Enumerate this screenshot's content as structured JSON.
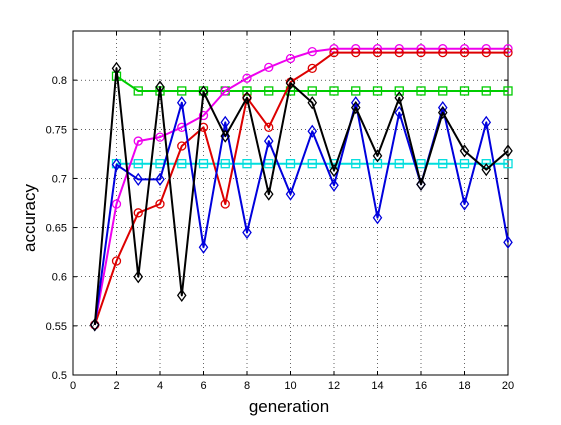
{
  "chart_data": {
    "type": "line",
    "title": "",
    "xlabel": "generation",
    "ylabel": "accuracy",
    "xlim": [
      0,
      20
    ],
    "ylim": [
      0.5,
      0.85
    ],
    "xticks": [
      "0",
      "2",
      "4",
      "6",
      "8",
      "10",
      "12",
      "14",
      "16",
      "18",
      "20"
    ],
    "yticks": [
      "0.5",
      "0.55",
      "0.6",
      "0.65",
      "0.7",
      "0.75",
      "0.8"
    ],
    "grid": true,
    "legend": "none",
    "series": [
      {
        "color": "#00cc00",
        "marker": "square",
        "x": [
          2,
          3,
          4,
          5,
          6,
          7,
          8,
          9,
          10,
          11,
          12,
          13,
          14,
          15,
          16,
          17,
          18,
          19,
          20
        ],
        "values": [
          0.804,
          0.789,
          0.789,
          0.789,
          0.789,
          0.789,
          0.789,
          0.789,
          0.789,
          0.789,
          0.789,
          0.789,
          0.789,
          0.789,
          0.789,
          0.789,
          0.789,
          0.789,
          0.789
        ]
      },
      {
        "color": "#00dddd",
        "marker": "square",
        "x": [
          2,
          3,
          4,
          5,
          6,
          7,
          8,
          9,
          10,
          11,
          12,
          13,
          14,
          15,
          16,
          17,
          18,
          19,
          20
        ],
        "values": [
          0.715,
          0.715,
          0.715,
          0.715,
          0.715,
          0.715,
          0.715,
          0.715,
          0.715,
          0.715,
          0.715,
          0.715,
          0.715,
          0.715,
          0.715,
          0.715,
          0.715,
          0.715,
          0.715
        ]
      },
      {
        "color": "#ee00ee",
        "marker": "circle",
        "x": [
          1,
          2,
          3,
          4,
          5,
          6,
          7,
          8,
          9,
          10,
          11,
          12,
          13,
          14,
          15,
          16,
          17,
          18,
          19,
          20
        ],
        "values": [
          0.551,
          0.674,
          0.738,
          0.742,
          0.752,
          0.764,
          0.789,
          0.802,
          0.813,
          0.822,
          0.829,
          0.832,
          0.832,
          0.832,
          0.832,
          0.832,
          0.832,
          0.832,
          0.832,
          0.832
        ]
      },
      {
        "color": "#dd0000",
        "marker": "circle",
        "x": [
          1,
          2,
          3,
          4,
          5,
          6,
          7,
          8,
          9,
          10,
          11,
          12,
          13,
          14,
          15,
          16,
          17,
          18,
          19,
          20
        ],
        "values": [
          0.551,
          0.616,
          0.665,
          0.674,
          0.733,
          0.752,
          0.674,
          0.782,
          0.752,
          0.798,
          0.812,
          0.828,
          0.828,
          0.828,
          0.828,
          0.828,
          0.828,
          0.828,
          0.828,
          0.828
        ]
      },
      {
        "color": "#0000dd",
        "marker": "diamond",
        "x": [
          1,
          2,
          3,
          4,
          5,
          6,
          7,
          8,
          9,
          10,
          11,
          12,
          13,
          14,
          15,
          16,
          17,
          18,
          19,
          20
        ],
        "values": [
          0.551,
          0.714,
          0.699,
          0.699,
          0.777,
          0.63,
          0.757,
          0.645,
          0.738,
          0.684,
          0.748,
          0.693,
          0.777,
          0.66,
          0.767,
          0.694,
          0.772,
          0.674,
          0.757,
          0.635
        ]
      },
      {
        "color": "#000000",
        "marker": "diamond",
        "x": [
          1,
          2,
          3,
          4,
          5,
          6,
          7,
          8,
          9,
          10,
          11,
          12,
          13,
          14,
          15,
          16,
          17,
          18,
          19,
          20
        ],
        "values": [
          0.551,
          0.812,
          0.6,
          0.793,
          0.581,
          0.788,
          0.743,
          0.782,
          0.684,
          0.797,
          0.777,
          0.708,
          0.772,
          0.723,
          0.782,
          0.694,
          0.767,
          0.728,
          0.709,
          0.728
        ]
      }
    ]
  }
}
